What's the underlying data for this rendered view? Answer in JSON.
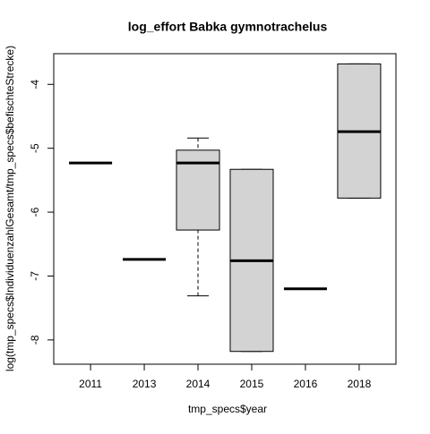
{
  "chart_data": {
    "type": "box",
    "title": "log_effort Babka gymnotrachelus",
    "x_label": "tmp_specs$year",
    "y_label": "log(tmp_specs$IndividuenzahlGesamt/tmp_specs$befischteStrecke)",
    "categories": [
      "2011",
      "2013",
      "2014",
      "2015",
      "2016",
      "2018"
    ],
    "stats": [
      [
        -5.23,
        -5.23,
        -5.23,
        -5.23,
        -5.23
      ],
      [
        -6.74,
        -6.74,
        -6.74,
        -6.74,
        -6.74
      ],
      [
        -7.31,
        -6.28,
        -5.23,
        -5.03,
        -4.84
      ],
      [
        -8.18,
        -8.18,
        -6.76,
        -5.33,
        -5.33
      ],
      [
        -7.2,
        -7.2,
        -7.2,
        -7.2,
        -7.2
      ],
      [
        -5.78,
        -5.78,
        -4.74,
        -3.68,
        -3.68
      ]
    ],
    "color": "#d3d3d3",
    "ylim": [
      -8.38,
      -3.52
    ],
    "yticks": [
      -8,
      -7,
      -6,
      -5,
      -4
    ]
  }
}
